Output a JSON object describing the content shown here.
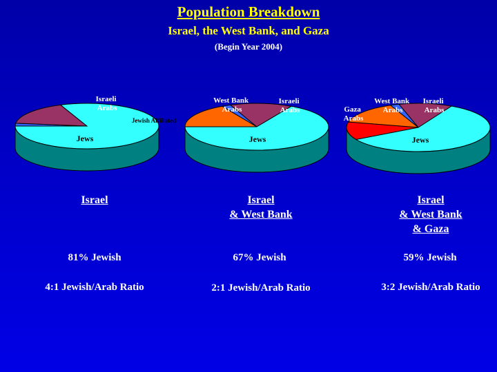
{
  "header": {
    "title": "Population Breakdown",
    "subtitle": "Israel, the West Bank, and Gaza",
    "note": "(Begin Year 2004)"
  },
  "colors": {
    "jews": "#33ffff",
    "jews_side": "#008080",
    "israeli_arabs": "#993366",
    "jewish_affiliated": "#3366ff",
    "west_bank_arabs": "#ff6600",
    "gaza_arabs": "#ff0000"
  },
  "chart_data": [
    {
      "type": "pie",
      "title": "",
      "slices": [
        {
          "label": "Jews",
          "value": 81,
          "color": "#33ffff"
        },
        {
          "label": "Israeli Arabs",
          "value": 17,
          "color": "#993366"
        },
        {
          "label": "Jewish Affiliated",
          "value": 2,
          "color": "#3366ff"
        }
      ]
    },
    {
      "type": "pie",
      "title": "",
      "slices": [
        {
          "label": "Jews",
          "value": 67,
          "color": "#33ffff"
        },
        {
          "label": "Israeli Arabs",
          "value": 14,
          "color": "#993366"
        },
        {
          "label": "",
          "value": 2,
          "color": "#3366ff"
        },
        {
          "label": "West Bank Arabs",
          "value": 17,
          "color": "#ff6600"
        }
      ]
    },
    {
      "type": "pie",
      "title": "",
      "slices": [
        {
          "label": "Jews",
          "value": 59,
          "color": "#33ffff"
        },
        {
          "label": "Israeli Arabs",
          "value": 12,
          "color": "#993366"
        },
        {
          "label": "",
          "value": 2,
          "color": "#3366ff"
        },
        {
          "label": "West Bank Arabs",
          "value": 15,
          "color": "#ff6600"
        },
        {
          "label": "Gaza Arabs",
          "value": 12,
          "color": "#ff0000"
        }
      ]
    }
  ],
  "pie_labels": {
    "israel": {
      "israeli_arabs": [
        "Israeli",
        "Arabs"
      ],
      "jewish_affiliated": "Jewish Affiliated",
      "jews": "Jews"
    },
    "israel_wb": {
      "west_bank_arabs": [
        "West Bank",
        "Arabs"
      ],
      "israeli_arabs": [
        "Israeli",
        "Arabs"
      ],
      "jews": "Jews"
    },
    "israel_wb_gaza": {
      "gaza_arabs": [
        "Gaza",
        "Arabs"
      ],
      "west_bank_arabs": [
        "West Bank",
        "Arabs"
      ],
      "israeli_arabs": [
        "Israeli",
        "Arabs"
      ],
      "jews": "Jews"
    }
  },
  "regions": [
    {
      "lines": [
        "Israel"
      ],
      "pct": "81% Jewish",
      "ratio": "4:1 Jewish/Arab Ratio"
    },
    {
      "lines": [
        "Israel",
        "& West Bank"
      ],
      "pct": "67% Jewish",
      "ratio": "2:1 Jewish/Arab Ratio"
    },
    {
      "lines": [
        "Israel",
        "& West Bank",
        "& Gaza"
      ],
      "pct": "59% Jewish",
      "ratio": "3:2 Jewish/Arab Ratio"
    }
  ]
}
